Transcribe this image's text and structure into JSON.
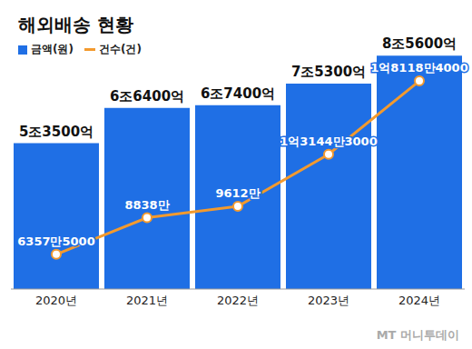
{
  "chart_data": {
    "type": "bar",
    "title": "해외배송 현황",
    "annotations": [
      "MT 머니투데이"
    ],
    "categories": [
      "2020년",
      "2021년",
      "2022년",
      "2023년",
      "2024년"
    ],
    "series": [
      {
        "name": "금액(원)",
        "type": "bar",
        "color": "#1f6fe5",
        "values": [
          5350000000000,
          6640000000000,
          6740000000000,
          7530000000000,
          8560000000000
        ],
        "value_labels": [
          "5조3500억",
          "6조6400억",
          "6조7400억",
          "7조5300억",
          "8조5600억"
        ]
      },
      {
        "name": "건수(건)",
        "type": "line",
        "color": "#f39a2e",
        "axis": "y2",
        "marker": "circle",
        "values": [
          63575000,
          88380000,
          96120000,
          131443000,
          181184000
        ],
        "value_labels": [
          "6357만5000",
          "8838만",
          "9612만",
          "1억3144만3000",
          "1억8118만4000"
        ]
      }
    ],
    "ylim": [
      0,
      10000000000000
    ],
    "yticks": [
      0,
      10000000000000
    ],
    "y2lim": [
      40000000,
      225000000
    ],
    "y2ticks": [
      40000000,
      225000000
    ],
    "legend": "top-left",
    "data_labels": true,
    "tick_labels": "x",
    "grid": false
  }
}
